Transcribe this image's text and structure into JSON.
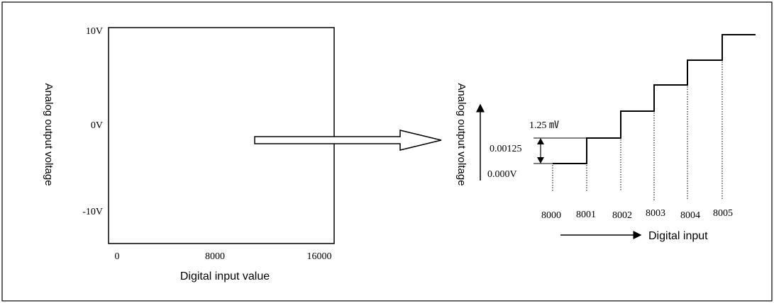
{
  "left_chart": {
    "y_tick_labels": [
      "10V",
      "0V",
      "-10V"
    ],
    "x_tick_labels": [
      "0",
      "8000",
      "16000"
    ],
    "y_axis_label": "Analog output voltage",
    "x_axis_label": "Digital input value"
  },
  "right_chart": {
    "y_axis_label": "Analog output voltage",
    "step_size_label": "1.25 ㎷",
    "step_value_label": "0.00125",
    "base_value_label": "0.000V",
    "x_tick_labels": [
      "8000",
      "8001",
      "8002",
      "8003",
      "8004",
      "8005"
    ],
    "x_axis_label": "Digital input"
  },
  "colors": {
    "line": "#000000",
    "background": "#ffffff"
  }
}
